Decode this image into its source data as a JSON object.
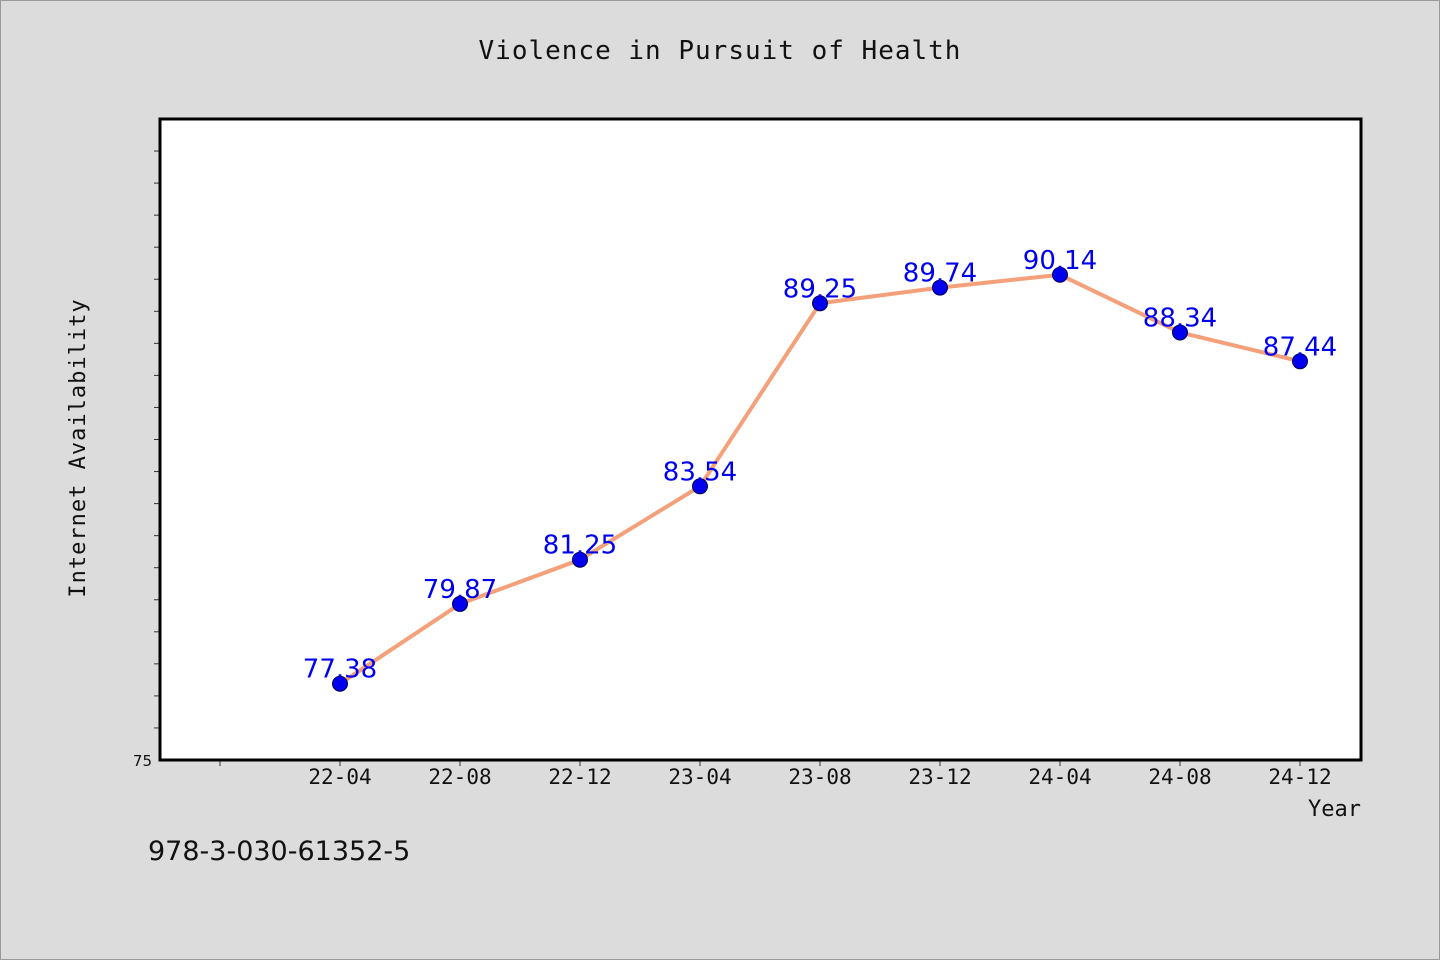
{
  "chart_data": {
    "type": "line",
    "title": "Violence in Pursuit of Health",
    "xlabel": "Year",
    "ylabel": "Internet Availability",
    "categories": [
      "22-04",
      "22-08",
      "22-12",
      "23-04",
      "23-08",
      "23-12",
      "24-04",
      "24-08",
      "24-12"
    ],
    "series": [
      {
        "values": [
          77.38,
          79.87,
          81.25,
          83.54,
          89.25,
          89.74,
          90.14,
          88.34,
          87.44
        ]
      }
    ],
    "data_labels": [
      "77.38",
      "79.87",
      "81.25",
      "83.54",
      "89.25",
      "89.74",
      "90.14",
      "88.34",
      "87.44"
    ],
    "y_tick_label": "75",
    "ylim": [
      75,
      95
    ],
    "grid": false,
    "colors": {
      "line": "#f4a07a",
      "marker": "#0000ee",
      "label": "#0000ee"
    }
  },
  "footer": {
    "isbn": "978-3-030-61352-5"
  }
}
